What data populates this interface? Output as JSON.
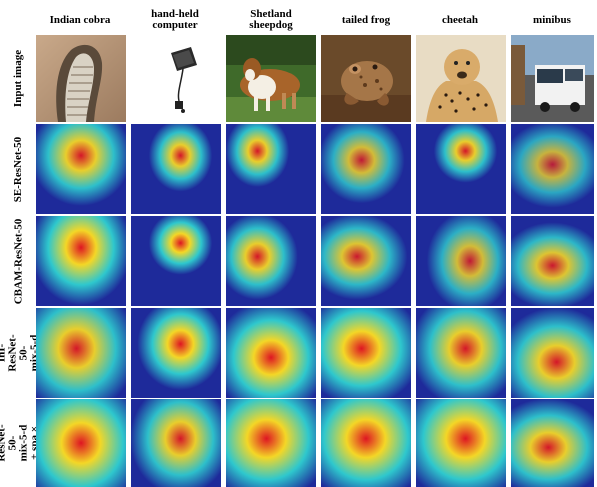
{
  "columns": [
    {
      "label": "Indian cobra"
    },
    {
      "label": "hand-held computer"
    },
    {
      "label": "Shetland sheepdog"
    },
    {
      "label": "tailed frog"
    },
    {
      "label": "cheetah"
    },
    {
      "label": "minibus"
    }
  ],
  "rows": [
    {
      "label": "Input image"
    },
    {
      "label": "SE-ResNet-50"
    },
    {
      "label": "CBAM-ResNet-50"
    },
    {
      "label": "InI-ResNet-50- mix-5-d"
    },
    {
      "label": "InI-ResNet-50- mix-5-d + spa × 4"
    }
  ],
  "colors": {
    "heat_low": "#1e2a9a",
    "heat_mid": "#2fd0d0",
    "heat_high": "#ffe020",
    "heat_peak": "#e8141c"
  }
}
